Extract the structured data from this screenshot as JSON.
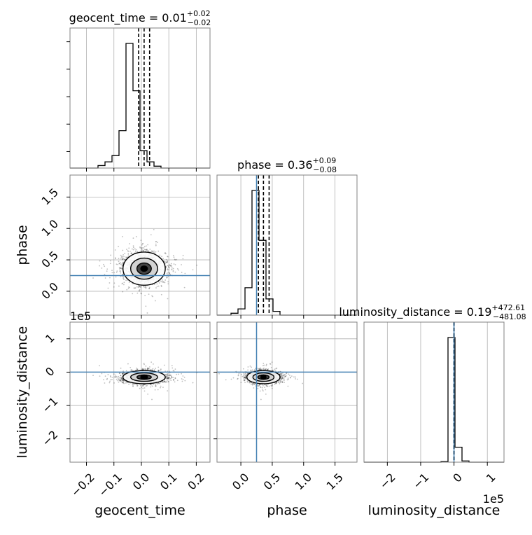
{
  "chart_data": {
    "type": "scatter",
    "subtype": "corner-plot",
    "parameters": [
      "geocent_time",
      "phase",
      "luminosity_distance"
    ],
    "axis_labels": {
      "geocent_time": "geocent_time",
      "phase": "phase",
      "luminosity_distance": "luminosity_distance"
    },
    "ranges": {
      "geocent_time": [
        -0.26,
        0.25
      ],
      "phase": [
        -0.38,
        1.85
      ],
      "luminosity_distance": [
        -270000,
        150000
      ]
    },
    "ticks": {
      "geocent_time": [
        {
          "v": -0.2,
          "label": "−0.2"
        },
        {
          "v": -0.1,
          "label": "−0.1"
        },
        {
          "v": 0.0,
          "label": "0.0"
        },
        {
          "v": 0.1,
          "label": "0.1"
        },
        {
          "v": 0.2,
          "label": "0.2"
        }
      ],
      "phase": [
        {
          "v": 0.0,
          "label": "0.0"
        },
        {
          "v": 0.5,
          "label": "0.5"
        },
        {
          "v": 1.0,
          "label": "1.0"
        },
        {
          "v": 1.5,
          "label": "1.5"
        }
      ],
      "luminosity_distance": [
        {
          "v": -200000,
          "label": "−2"
        },
        {
          "v": -100000,
          "label": "−1"
        },
        {
          "v": 0,
          "label": "0"
        },
        {
          "v": 100000,
          "label": "1"
        }
      ]
    },
    "offset_text": "1e5",
    "titles": {
      "geocent_time": {
        "main": "geocent_time = 0.01",
        "plus": "+0.02",
        "minus": "−0.02"
      },
      "phase": {
        "main": "phase = 0.36",
        "plus": "+0.09",
        "minus": "−0.08"
      },
      "luminosity_distance": {
        "main": "luminosity_distance = 0.19",
        "plus": "+472.61",
        "minus": "−481.08"
      }
    },
    "quantiles": {
      "geocent_time": [
        -0.01,
        0.01,
        0.03
      ],
      "phase": [
        0.28,
        0.36,
        0.45
      ],
      "luminosity_distance": [
        -480,
        0,
        470
      ]
    },
    "truths": {
      "phase": 0.25,
      "luminosity_distance": 0
    },
    "histograms": {
      "geocent_time": {
        "edges": [
          -0.26,
          -0.2345,
          -0.209,
          -0.1835,
          -0.158,
          -0.1325,
          -0.107,
          -0.0815,
          -0.056,
          -0.0305,
          -0.005,
          0.0205,
          0.046,
          0.0715,
          0.097,
          0.1225,
          0.148,
          0.1735,
          0.199,
          0.2245,
          0.25
        ],
        "counts": [
          0,
          0,
          0,
          0,
          0.02,
          0.05,
          0.1,
          0.3,
          1.0,
          0.62,
          0.14,
          0.05,
          0.015,
          0,
          0,
          0,
          0,
          0,
          0,
          0
        ]
      },
      "phase": {
        "edges": [
          -0.38,
          -0.2685,
          -0.157,
          -0.0455,
          0.066,
          0.1775,
          0.289,
          0.4005,
          0.512,
          0.6235,
          0.735,
          0.8465,
          0.958,
          1.0695,
          1.181,
          1.2925,
          1.404,
          1.5155,
          1.627,
          1.7385,
          1.85
        ],
        "counts": [
          0,
          0,
          0.015,
          0.05,
          0.22,
          1.0,
          0.6,
          0.13,
          0.03,
          0,
          0,
          0,
          0,
          0,
          0,
          0,
          0,
          0,
          0,
          0
        ]
      },
      "luminosity_distance": {
        "edges": [
          -270000,
          -249000,
          -228000,
          -207000,
          -186000,
          -165000,
          -144000,
          -123000,
          -102000,
          -81000,
          -60000,
          -39000,
          -18000,
          3000,
          24000,
          45000,
          66000,
          87000,
          108000,
          129000,
          150000
        ],
        "counts": [
          0,
          0,
          0,
          0,
          0,
          0,
          0,
          0,
          0,
          0,
          0,
          0.005,
          1.0,
          0.12,
          0.01,
          0,
          0,
          0,
          0,
          0
        ]
      }
    },
    "samples": {
      "n": 2200,
      "centers": {
        "geocent_time": 0.01,
        "phase": 0.36,
        "luminosity_distance": -15000
      },
      "sigmas": {
        "geocent_time": 0.035,
        "phase": 0.12,
        "luminosity_distance": 9000
      }
    },
    "grid": true,
    "colors": {
      "hist": "#000000",
      "truth": "#4682b4",
      "grid": "#b0b0b0",
      "points": "#000000"
    }
  }
}
